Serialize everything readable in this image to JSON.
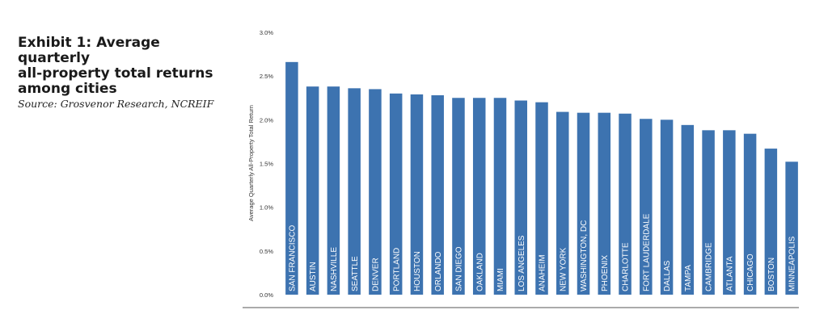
{
  "caption": {
    "title_lines": [
      "Exhibit 1: Average quarterly",
      "all-property total returns",
      "among cities"
    ],
    "source": "Source: Grosvenor Research, NCREIF"
  },
  "chart_data": {
    "type": "bar",
    "orientation": "vertical",
    "ylabel": "Average Quarterly All-Property Total Return",
    "xlabel": "",
    "ylim": [
      0,
      3.0
    ],
    "y_ticks": [
      "0.0%",
      "0.5%",
      "1.0%",
      "1.5%",
      "2.0%",
      "2.5%",
      "3.0%"
    ],
    "grid": false,
    "legend": "none",
    "bar_color": "#3d73b0",
    "categories": [
      "SAN FRANCISCO",
      "AUSTIN",
      "NASHVILLE",
      "SEATTLE",
      "DENVER",
      "PORTLAND",
      "HOUSTON",
      "ORLANDO",
      "SAN DIEGO",
      "OAKLAND",
      "MIAMI",
      "LOS ANGELES",
      "ANAHEIM",
      "NEW YORK",
      "WASHINGTON, DC",
      "PHOENIX",
      "CHARLOTTE",
      "FORT LAUDERDALE",
      "DALLAS",
      "TAMPA",
      "CAMBRIDGE",
      "ATLANTA",
      "CHICAGO",
      "BOSTON",
      "MINNEAPOLIS"
    ],
    "values": [
      2.66,
      2.38,
      2.38,
      2.36,
      2.35,
      2.3,
      2.29,
      2.28,
      2.25,
      2.25,
      2.25,
      2.22,
      2.2,
      2.09,
      2.08,
      2.08,
      2.07,
      2.01,
      2.0,
      1.94,
      1.88,
      1.88,
      1.84,
      1.67,
      1.52
    ]
  }
}
